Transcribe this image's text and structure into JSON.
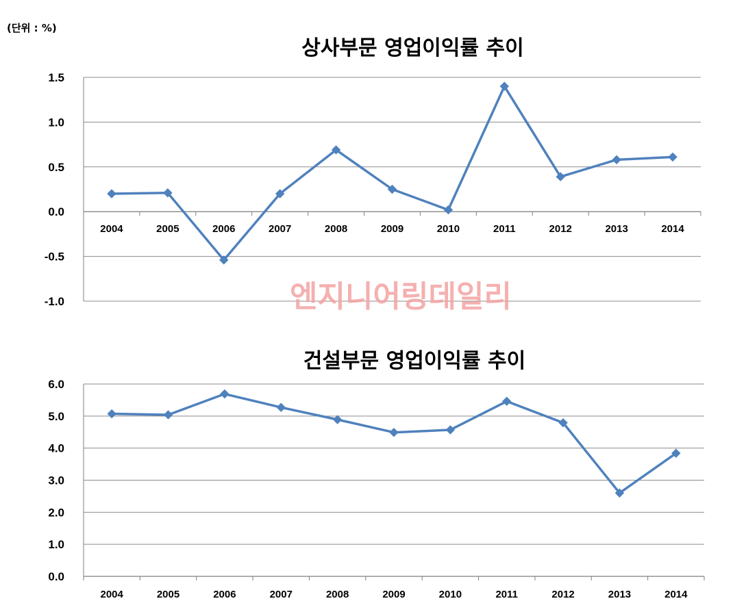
{
  "unit_note": "(단위 : %)",
  "watermark": "엔지니어링데일리",
  "colors": {
    "series": "#4f81bd",
    "grid": "#8c8c8c",
    "axis": "#7f7f7f",
    "watermark": "#f4a3a3"
  },
  "chart_data": [
    {
      "type": "line",
      "title": "상사부문 영업이익률 추이",
      "categories": [
        "2004",
        "2005",
        "2006",
        "2007",
        "2008",
        "2009",
        "2010",
        "2011",
        "2012",
        "2013",
        "2014"
      ],
      "series": [
        {
          "values": [
            0.2,
            0.21,
            -0.54,
            0.2,
            0.69,
            0.25,
            0.02,
            1.4,
            0.39,
            0.58,
            0.61
          ]
        }
      ],
      "ylim": [
        -1.0,
        1.5
      ],
      "yticks": [
        "1.5",
        "1.0",
        "0.5",
        "0.0",
        "-0.5",
        "-1.0"
      ],
      "ytick_values": [
        1.5,
        1.0,
        0.5,
        0.0,
        -0.5,
        -1.0
      ],
      "grid": true,
      "legend": "none"
    },
    {
      "type": "line",
      "title": "건설부문 영업이익률 추이",
      "categories": [
        "2004",
        "2005",
        "2006",
        "2007",
        "2008",
        "2009",
        "2010",
        "2011",
        "2012",
        "2013",
        "2014"
      ],
      "series": [
        {
          "values": [
            5.07,
            5.04,
            5.69,
            5.27,
            4.89,
            4.49,
            4.57,
            5.46,
            4.79,
            2.6,
            3.84
          ]
        }
      ],
      "ylim": [
        0.0,
        6.0
      ],
      "yticks": [
        "6.0",
        "5.0",
        "4.0",
        "3.0",
        "2.0",
        "1.0",
        "0.0"
      ],
      "ytick_values": [
        6.0,
        5.0,
        4.0,
        3.0,
        2.0,
        1.0,
        0.0
      ],
      "grid": true,
      "legend": "none"
    }
  ]
}
